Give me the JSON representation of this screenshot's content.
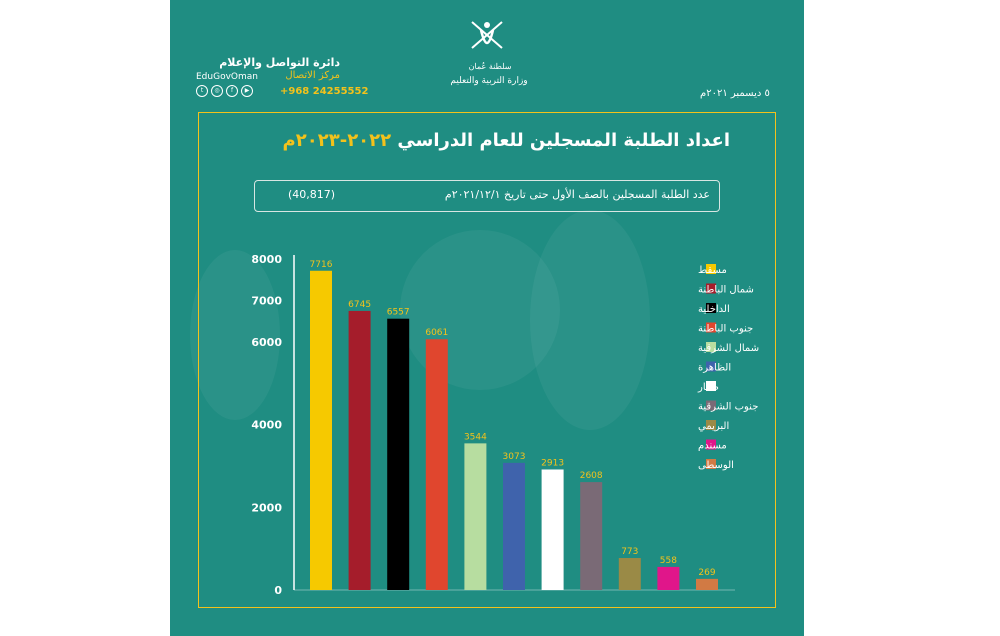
{
  "header": {
    "department": "دائرة التواصل والإعلام",
    "center": "مركز الاتصال",
    "handle": "EduGovOman",
    "phone": "+968 24255552",
    "social_icons": [
      "twitter-icon",
      "instagram-icon",
      "facebook-icon",
      "youtube-icon"
    ],
    "ministry_line1": "سلطنة عُمان",
    "ministry_line2": "وزارة التربية والتعليم",
    "date": "٥ ديسمبر ٢٠٢١م"
  },
  "chart_data": {
    "type": "bar",
    "title": "اعداد الطلبة المسجلين للعام الدراسي ",
    "title_year": "٢٠٢٢-٢٠٢٣م",
    "subtitle": "عدد الطلبة المسجلين بالصف الأول حتى تاريخ ٢٠٢١/١٢/١م",
    "subtitle_total": "(40,817)",
    "categories": [
      "مسقط",
      "شمال الباطنة",
      "الداخلية",
      "جنوب الباطنة",
      "شمال الشرقية",
      "الظاهرة",
      "ظفار",
      "جنوب الشرقية",
      "البريمي",
      "مسندم",
      "الوسطى"
    ],
    "values": [
      7716,
      6745,
      6557,
      6061,
      3544,
      3073,
      2913,
      2608,
      773,
      558,
      269
    ],
    "colors": [
      "#f6c900",
      "#a51d2b",
      "#000000",
      "#e0462e",
      "#b7dda0",
      "#3f63ac",
      "#ffffff",
      "#7a6a76",
      "#9a8a46",
      "#e0168a",
      "#d17a44"
    ],
    "y_ticks": [
      0,
      2000,
      4000,
      6000,
      7000,
      8000
    ],
    "ylim": [
      0,
      8000
    ],
    "legend_position": "right",
    "grid": false
  }
}
